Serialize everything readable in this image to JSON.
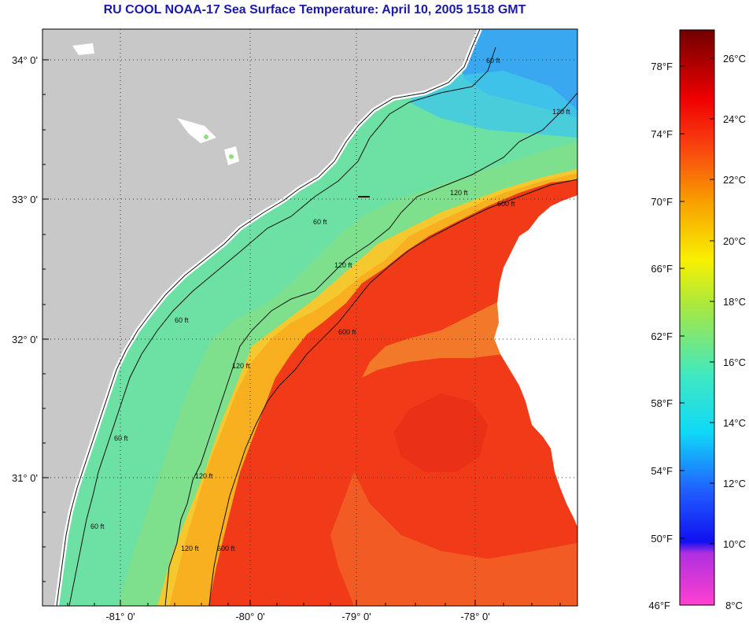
{
  "title": "RU COOL  NOAA-17  Sea Surface Temperature:  April 10, 2005 1518 GMT",
  "map": {
    "lat_labels": [
      "34° 0'",
      "33° 0'",
      "32° 0'",
      "31° 0'"
    ],
    "lon_labels": [
      "-81° 0'",
      "-80° 0'",
      "-79° 0'",
      "-78° 0'"
    ],
    "contour_labels": {
      "c60": [
        "60 ft",
        "60 ft",
        "60 ft",
        "60 ft",
        "60 ft"
      ],
      "c120": [
        "120 ft",
        "120 ft",
        "120 ft",
        "120 ft",
        "120 ft",
        "120 ft"
      ],
      "c600": [
        "600 ft",
        "600 ft",
        "600 ft"
      ]
    },
    "colors": {
      "land": "#c8c8c8",
      "nodata": "#ffffff",
      "cold_shelf": "#3fd4d8",
      "nearshore": "#8ee07a",
      "warm_shelf": "#f4b81e",
      "gulf_stream": "#f02010"
    }
  },
  "colorbar": {
    "fahrenheit_labels": [
      "78°F",
      "74°F",
      "70°F",
      "66°F",
      "62°F",
      "58°F",
      "54°F",
      "50°F",
      "46°F"
    ],
    "celsius_labels": [
      "26°C",
      "24°C",
      "22°C",
      "20°C",
      "18°C",
      "16°C",
      "14°C",
      "12°C",
      "10°C",
      "8°C"
    ],
    "range_c": [
      8,
      27
    ]
  }
}
